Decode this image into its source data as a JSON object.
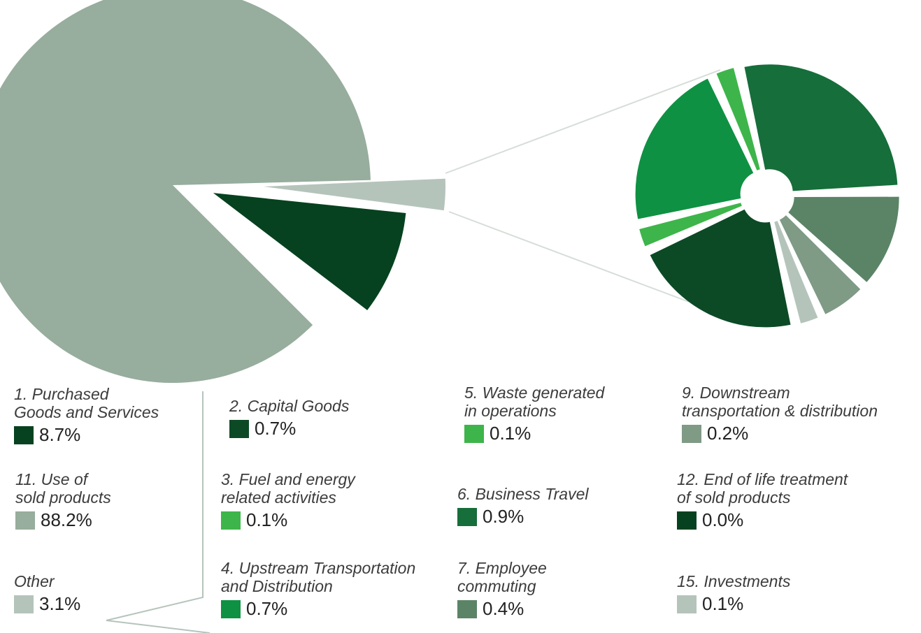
{
  "chart_data": {
    "type": "pie",
    "main_pie": {
      "slices": [
        {
          "label": "11. Use of sold products",
          "value": 88.2,
          "color": "#97ad9d"
        },
        {
          "label": "1. Purchased Goods and Services",
          "value": 8.7,
          "color": "#06421f"
        },
        {
          "label": "Other",
          "value": 3.1,
          "color": "#b5c4bb"
        }
      ]
    },
    "breakdown_pie": {
      "of": "Other",
      "slices": [
        {
          "label": "6. Business Travel",
          "value": 0.9,
          "color": "#166e3a"
        },
        {
          "label": "7. Employee commuting",
          "value": 0.4,
          "color": "#5b8467"
        },
        {
          "label": "9. Downstream transportation & distribution",
          "value": 0.2,
          "color": "#7f9a85"
        },
        {
          "label": "15. Investments",
          "value": 0.1,
          "color": "#b5c4bb"
        },
        {
          "label": "2. Capital Goods",
          "value": 0.7,
          "color": "#0c4a26"
        },
        {
          "label": "5. Waste generated in operations",
          "value": 0.1,
          "color": "#3db54a"
        },
        {
          "label": "4. Upstream Transportation and Distribution",
          "value": 0.7,
          "color": "#0e9143"
        },
        {
          "label": "3. Fuel and energy related activities",
          "value": 0.1,
          "color": "#3db54a"
        }
      ]
    }
  },
  "legend": [
    {
      "label": "1. Purchased\nGoods and Services",
      "value": "8.7%",
      "color": "#06421f"
    },
    {
      "label": "11. Use of\nsold products",
      "value": "88.2%",
      "color": "#97ad9d"
    },
    {
      "label": "Other",
      "value": "3.1%",
      "color": "#b5c4bb"
    },
    {
      "label": "2. Capital Goods",
      "value": "0.7%",
      "color": "#0c4a26"
    },
    {
      "label": "3. Fuel and energy\nrelated activities",
      "value": "0.1%",
      "color": "#3db54a"
    },
    {
      "label": "4. Upstream Transportation\nand Distribution",
      "value": "0.7%",
      "color": "#0e9143"
    },
    {
      "label": "5. Waste generated\nin operations",
      "value": "0.1%",
      "color": "#3db54a"
    },
    {
      "label": "6. Business Travel",
      "value": "0.9%",
      "color": "#166e3a"
    },
    {
      "label": "7. Employee\ncommuting",
      "value": "0.4%",
      "color": "#5b8467"
    },
    {
      "label": "9. Downstream\ntransportation & distribution",
      "value": "0.2%",
      "color": "#7f9a85"
    },
    {
      "label": "12. End of life treatment\nof sold products",
      "value": "0.0%",
      "color": "#06421f"
    },
    {
      "label": "15. Investments",
      "value": "0.1%",
      "color": "#b5c4bb"
    }
  ]
}
